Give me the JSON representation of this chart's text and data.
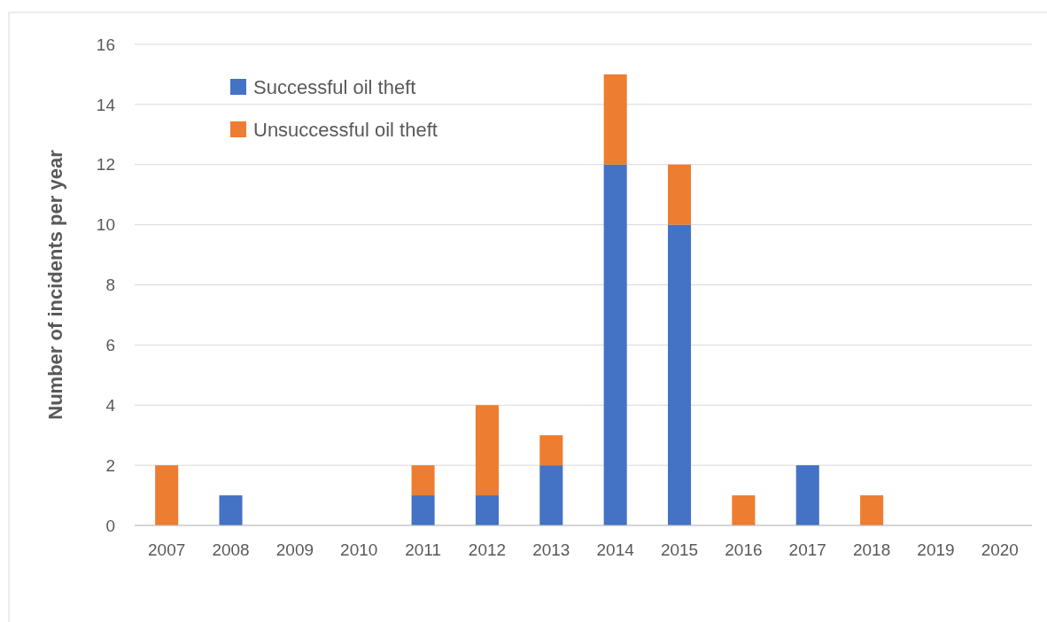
{
  "chart_data": {
    "type": "bar",
    "ylabel": "Number of incidents per year",
    "categories": [
      "2007",
      "2008",
      "2009",
      "2010",
      "2011",
      "2012",
      "2013",
      "2014",
      "2015",
      "2016",
      "2017",
      "2018",
      "2019",
      "2020"
    ],
    "series": [
      {
        "name": "Successful oil theft",
        "color": "#4472c4",
        "values": [
          0,
          1,
          0,
          0,
          1,
          1,
          2,
          12,
          10,
          0,
          2,
          0,
          0,
          0
        ]
      },
      {
        "name": "Unsuccessful oil theft",
        "color": "#ed7d31",
        "values": [
          2,
          0,
          0,
          0,
          1,
          3,
          1,
          3,
          2,
          1,
          0,
          1,
          0,
          0
        ]
      }
    ],
    "stacked": true,
    "ylim": [
      0,
      16
    ],
    "yticks": [
      0,
      2,
      4,
      6,
      8,
      10,
      12,
      14,
      16
    ],
    "grid": "y",
    "legend": "top left"
  }
}
